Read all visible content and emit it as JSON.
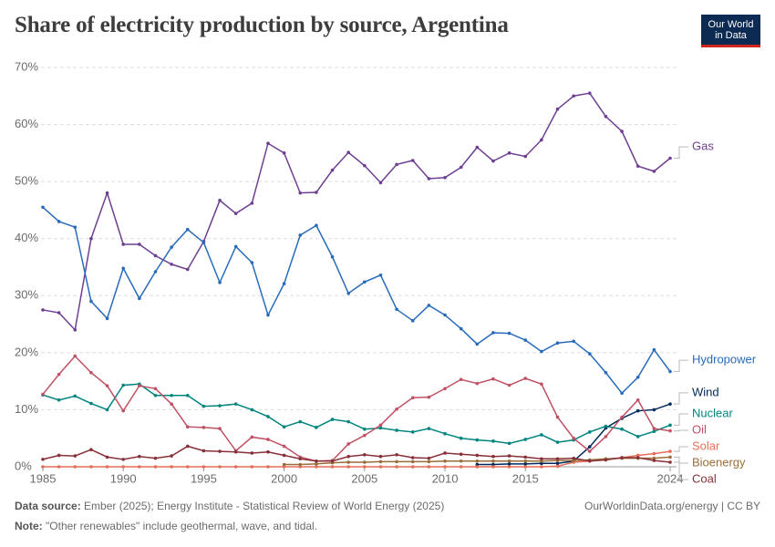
{
  "chart_data": {
    "type": "line",
    "title": "Share of electricity production by source, Argentina",
    "logo": [
      "Our World",
      "in Data"
    ],
    "x": [
      1985,
      1986,
      1987,
      1988,
      1989,
      1990,
      1991,
      1992,
      1993,
      1994,
      1995,
      1996,
      1997,
      1998,
      1999,
      2000,
      2001,
      2002,
      2003,
      2004,
      2005,
      2006,
      2007,
      2008,
      2009,
      2010,
      2011,
      2012,
      2013,
      2014,
      2015,
      2016,
      2017,
      2018,
      2019,
      2020,
      2021,
      2022,
      2023,
      2024
    ],
    "xlim": [
      1985,
      2024
    ],
    "xticks": [
      1985,
      1990,
      1995,
      2000,
      2005,
      2010,
      2015,
      2024
    ],
    "ylim": [
      0,
      70
    ],
    "yticks": [
      {
        "value": 0,
        "label": "0%"
      },
      {
        "value": 10,
        "label": "10%"
      },
      {
        "value": 20,
        "label": "20%"
      },
      {
        "value": 30,
        "label": "30%"
      },
      {
        "value": 40,
        "label": "40%"
      },
      {
        "value": 50,
        "label": "50%"
      },
      {
        "value": 60,
        "label": "60%"
      },
      {
        "value": 70,
        "label": "70%"
      }
    ],
    "grid": true,
    "series": [
      {
        "name": "Gas",
        "color": "#6d3e91",
        "values": [
          27.5,
          27,
          24,
          40,
          48,
          39,
          39,
          37,
          35.5,
          34.6,
          39.5,
          46.7,
          44.4,
          46.2,
          56.7,
          55,
          48,
          48.1,
          52,
          55.1,
          52.8,
          49.8,
          53,
          53.7,
          50.5,
          50.7,
          52.5,
          56,
          53.6,
          55,
          54.4,
          57.3,
          62.7,
          65,
          65.5,
          61.4,
          58.8,
          52.7,
          51.8,
          54.1
        ]
      },
      {
        "name": "Hydropower",
        "color": "#286bbb",
        "values": [
          45.5,
          43,
          42,
          29,
          26,
          34.8,
          29.5,
          34.2,
          38.5,
          41.6,
          39.3,
          32.3,
          38.6,
          35.8,
          26.6,
          32.1,
          40.6,
          42.3,
          36.8,
          30.4,
          32.4,
          33.6,
          27.6,
          25.6,
          28.3,
          26.6,
          24.2,
          21.5,
          23.5,
          23.4,
          22.2,
          20.2,
          21.7,
          22,
          19.8,
          16.5,
          12.9,
          15.7,
          20.5,
          16.7
        ]
      },
      {
        "name": "Wind",
        "color": "#00295b",
        "values": [
          null,
          null,
          null,
          null,
          null,
          null,
          null,
          null,
          null,
          null,
          null,
          null,
          null,
          null,
          null,
          null,
          null,
          null,
          null,
          null,
          null,
          null,
          null,
          null,
          null,
          null,
          null,
          0.4,
          0.4,
          0.5,
          0.5,
          0.6,
          0.6,
          1,
          3.5,
          6.8,
          8.5,
          9.8,
          10,
          11
        ]
      },
      {
        "name": "Nuclear",
        "color": "#00847e",
        "values": [
          12.6,
          11.7,
          12.4,
          11.1,
          10,
          14.3,
          14.5,
          12.5,
          12.5,
          12.5,
          10.6,
          10.7,
          11,
          10,
          8.8,
          7,
          7.9,
          6.9,
          8.3,
          7.9,
          6.6,
          6.8,
          6.4,
          6.1,
          6.7,
          5.8,
          5,
          4.7,
          4.5,
          4.1,
          4.8,
          5.6,
          4.3,
          4.7,
          6.1,
          7.1,
          6.6,
          5.3,
          6.2,
          7.3
        ]
      },
      {
        "name": "Oil",
        "color": "#c15065",
        "values": [
          12.7,
          16.2,
          19.4,
          16.5,
          14.2,
          9.8,
          14.2,
          13.7,
          11,
          7,
          6.9,
          6.7,
          2.8,
          5.2,
          4.8,
          3.6,
          1.7,
          1,
          1.1,
          4,
          5.5,
          7.3,
          10.1,
          12.1,
          12.2,
          13.7,
          15.3,
          14.6,
          15.4,
          14.3,
          15.5,
          14.5,
          8.7,
          5,
          2.7,
          5.3,
          8.7,
          11.7,
          6.7,
          6.3
        ]
      },
      {
        "name": "Solar",
        "color": "#e56e5a",
        "values": [
          0,
          0,
          0,
          0,
          0,
          0,
          0,
          0,
          0,
          0,
          0,
          0,
          0,
          0,
          0,
          0,
          0,
          0,
          0,
          0,
          0,
          0,
          0,
          0,
          0,
          0,
          0,
          0,
          0,
          0,
          0,
          0,
          0.1,
          0.8,
          1,
          1.3,
          1.6,
          2,
          2.3,
          2.7
        ]
      },
      {
        "name": "Bioenergy",
        "color": "#996d39",
        "values": [
          null,
          null,
          null,
          null,
          null,
          null,
          null,
          null,
          null,
          null,
          null,
          null,
          null,
          null,
          null,
          0.4,
          0.4,
          0.5,
          0.7,
          0.8,
          0.8,
          0.9,
          0.9,
          0.9,
          0.9,
          1,
          1,
          1,
          1,
          1,
          1,
          1,
          1.1,
          1.1,
          1.2,
          1.4,
          1.5,
          1.5,
          1.5,
          1.7
        ]
      },
      {
        "name": "Coal",
        "color": "#883039",
        "values": [
          1.3,
          2,
          1.9,
          3,
          1.7,
          1.3,
          1.8,
          1.5,
          1.9,
          3.6,
          2.8,
          2.7,
          2.6,
          2.4,
          2.6,
          2,
          1.4,
          1,
          1,
          1.8,
          2.1,
          1.8,
          2.1,
          1.6,
          1.5,
          2.4,
          2.2,
          2,
          1.8,
          1.9,
          1.7,
          1.4,
          1.4,
          1.5,
          1,
          1.2,
          1.6,
          1.6,
          1.1,
          0.8
        ]
      }
    ],
    "source_label": "Data source:",
    "source": "Ember (2025); Energy Institute - Statistical Review of World Energy (2025)",
    "credit": "OurWorldinData.org/energy | CC BY",
    "note_label": "Note:",
    "note": "\"Other renewables\" include geothermal, wave, and tidal."
  }
}
